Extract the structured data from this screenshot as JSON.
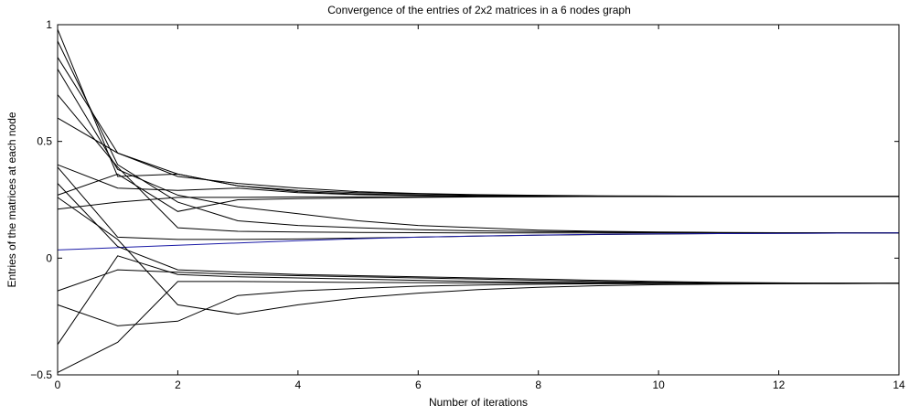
{
  "chart_data": {
    "type": "line",
    "title": "Convergence of the entries of 2x2 matrices in a 6 nodes graph",
    "xlabel": "Number of iterations",
    "ylabel": "Entries of the matrices at each node",
    "xlim": [
      0,
      14
    ],
    "ylim": [
      -0.5,
      1
    ],
    "xticks": [
      0,
      2,
      4,
      6,
      8,
      10,
      12,
      14
    ],
    "xtick_labels": [
      "0",
      "2",
      "4",
      "6",
      "8",
      "10",
      "12",
      "14"
    ],
    "yticks": [
      -0.5,
      0,
      0.5,
      1
    ],
    "ytick_labels": [
      "−0.5",
      "0",
      "0.5",
      "1"
    ],
    "grid": false,
    "x": [
      0,
      1,
      2,
      3,
      4,
      5,
      6,
      7,
      8,
      9,
      10,
      11,
      12,
      13,
      14
    ],
    "series": [
      {
        "color": "#000000",
        "values": [
          0.98,
          0.35,
          0.36,
          0.31,
          0.29,
          0.28,
          0.275,
          0.27,
          0.268,
          0.266,
          0.265,
          0.264,
          0.264,
          0.264,
          0.264
        ]
      },
      {
        "color": "#000000",
        "values": [
          0.86,
          0.45,
          0.35,
          0.32,
          0.3,
          0.285,
          0.277,
          0.272,
          0.269,
          0.267,
          0.266,
          0.265,
          0.264,
          0.264,
          0.264
        ]
      },
      {
        "color": "#000000",
        "values": [
          0.6,
          0.45,
          0.36,
          0.31,
          0.285,
          0.275,
          0.27,
          0.267,
          0.266,
          0.265,
          0.264,
          0.264,
          0.264,
          0.264,
          0.264
        ]
      },
      {
        "color": "#000000",
        "values": [
          0.4,
          0.3,
          0.29,
          0.3,
          0.28,
          0.272,
          0.268,
          0.266,
          0.265,
          0.264,
          0.264,
          0.264,
          0.264,
          0.264,
          0.264
        ]
      },
      {
        "color": "#000000",
        "values": [
          0.21,
          0.24,
          0.26,
          0.26,
          0.262,
          0.263,
          0.263,
          0.264,
          0.264,
          0.264,
          0.264,
          0.264,
          0.264,
          0.264,
          0.264
        ]
      },
      {
        "color": "#000000",
        "values": [
          0.27,
          0.36,
          0.2,
          0.25,
          0.255,
          0.258,
          0.26,
          0.262,
          0.263,
          0.264,
          0.264,
          0.264,
          0.264,
          0.264,
          0.264
        ]
      },
      {
        "color": "#000000",
        "values": [
          0.81,
          0.38,
          0.27,
          0.22,
          0.19,
          0.16,
          0.14,
          0.13,
          0.12,
          0.115,
          0.112,
          0.11,
          0.109,
          0.109,
          0.108
        ]
      },
      {
        "color": "#000000",
        "values": [
          0.93,
          0.4,
          0.24,
          0.16,
          0.14,
          0.13,
          0.122,
          0.117,
          0.114,
          0.112,
          0.11,
          0.109,
          0.108,
          0.108,
          0.108
        ]
      },
      {
        "color": "#000000",
        "values": [
          0.7,
          0.39,
          0.13,
          0.115,
          0.112,
          0.11,
          0.109,
          0.108,
          0.108,
          0.108,
          0.108,
          0.108,
          0.108,
          0.108,
          0.108
        ]
      },
      {
        "color": "#000000",
        "values": [
          0.39,
          0.09,
          0.08,
          0.08,
          0.082,
          0.086,
          0.09,
          0.094,
          0.098,
          0.101,
          0.103,
          0.105,
          0.106,
          0.107,
          0.108
        ]
      },
      {
        "color": "#1a1aa6",
        "values": [
          0.035,
          0.045,
          0.055,
          0.065,
          0.075,
          0.083,
          0.09,
          0.095,
          0.099,
          0.102,
          0.104,
          0.105,
          0.106,
          0.107,
          0.108
        ]
      },
      {
        "color": "#000000",
        "values": [
          0.32,
          0.05,
          -0.05,
          -0.06,
          -0.07,
          -0.075,
          -0.08,
          -0.085,
          -0.09,
          -0.095,
          -0.1,
          -0.104,
          -0.106,
          -0.107,
          -0.108
        ]
      },
      {
        "color": "#000000",
        "values": [
          -0.14,
          -0.05,
          -0.06,
          -0.07,
          -0.075,
          -0.08,
          -0.085,
          -0.09,
          -0.095,
          -0.1,
          -0.104,
          -0.106,
          -0.107,
          -0.108,
          -0.108
        ]
      },
      {
        "color": "#000000",
        "values": [
          -0.37,
          0.01,
          -0.07,
          -0.08,
          -0.085,
          -0.09,
          -0.095,
          -0.1,
          -0.103,
          -0.105,
          -0.106,
          -0.107,
          -0.108,
          -0.108,
          -0.108
        ]
      },
      {
        "color": "#000000",
        "values": [
          -0.2,
          -0.29,
          -0.27,
          -0.16,
          -0.14,
          -0.13,
          -0.12,
          -0.115,
          -0.112,
          -0.11,
          -0.109,
          -0.108,
          -0.108,
          -0.108,
          -0.108
        ]
      },
      {
        "color": "#000000",
        "values": [
          -0.49,
          -0.36,
          -0.1,
          -0.1,
          -0.102,
          -0.104,
          -0.105,
          -0.106,
          -0.107,
          -0.107,
          -0.108,
          -0.108,
          -0.108,
          -0.108,
          -0.108
        ]
      },
      {
        "color": "#000000",
        "values": [
          0.26,
          0.08,
          -0.2,
          -0.24,
          -0.2,
          -0.17,
          -0.15,
          -0.135,
          -0.125,
          -0.118,
          -0.114,
          -0.111,
          -0.11,
          -0.109,
          -0.108
        ]
      }
    ]
  }
}
